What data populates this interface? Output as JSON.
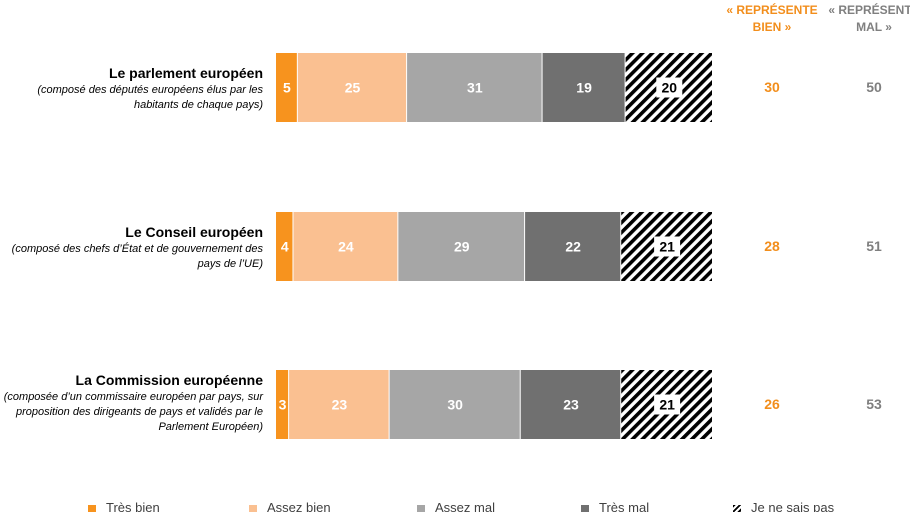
{
  "chart_data": {
    "type": "bar",
    "orientation": "horizontal",
    "stacked": true,
    "categories": [
      {
        "name": "Le parlement européen",
        "description": "(composé des députés européens élus par les habitants de chaque pays)"
      },
      {
        "name": "Le Conseil européen",
        "description": "(composé des chefs d’État et de gouvernement des pays de l’UE)"
      },
      {
        "name": "La Commission européenne",
        "description": "(composée d’un commissaire européen par pays, sur proposition des dirigeants de pays et validés par le Parlement Européen)"
      }
    ],
    "series": [
      {
        "name": "Très bien",
        "color": "#f7931e",
        "values": [
          5,
          4,
          3
        ]
      },
      {
        "name": "Assez bien",
        "color": "#fac091",
        "values": [
          25,
          24,
          23
        ]
      },
      {
        "name": "Assez mal",
        "color": "#a6a6a6",
        "values": [
          31,
          29,
          30
        ]
      },
      {
        "name": "Très mal",
        "color": "#707070",
        "values": [
          19,
          22,
          23
        ]
      },
      {
        "name": "Je ne sais pas",
        "color": "hatched",
        "values": [
          20,
          21,
          21
        ]
      }
    ],
    "summary_columns": [
      {
        "header": "« REPRÉSENTE BIEN »",
        "color": "#f28e1c",
        "values": [
          30,
          28,
          26
        ]
      },
      {
        "header": "« REPRÉSENTE MAL »",
        "color": "#7f7f7f",
        "values": [
          50,
          51,
          53
        ]
      }
    ],
    "xlim": [
      0,
      100
    ],
    "grid": false,
    "legend_position": "bottom"
  }
}
